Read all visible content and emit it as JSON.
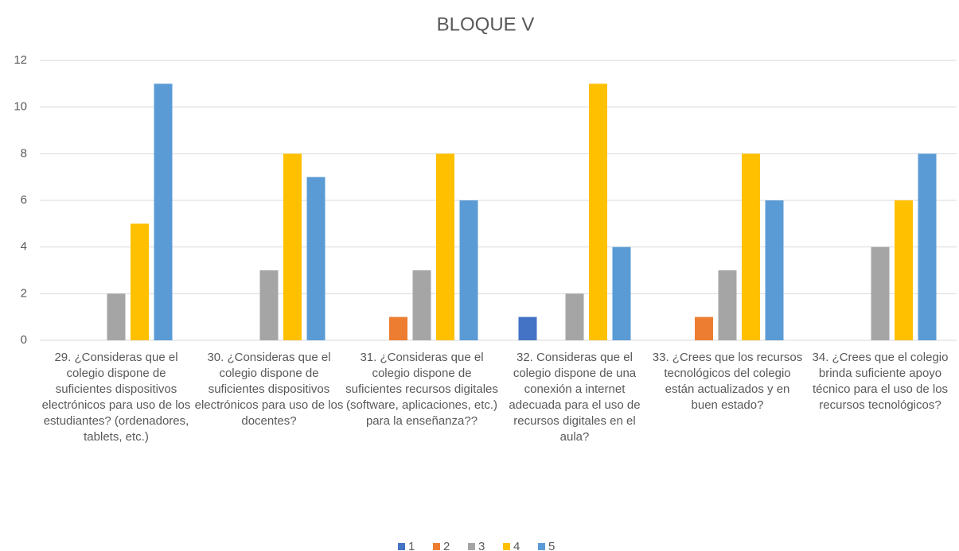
{
  "chart_data": {
    "type": "bar",
    "title": "BLOQUE V",
    "categories": [
      "29. ¿Consideras que el colegio dispone de suficientes dispositivos electrónicos para uso de los estudiantes? (ordenadores, tablets, etc.)",
      "30. ¿Consideras que el colegio dispone de suficientes dispositivos electrónicos para uso de los docentes?",
      "31. ¿Consideras que el colegio dispone de suficientes recursos digitales (software, aplicaciones, etc.) para la enseñanza??",
      "32. Consideras que el colegio dispone de una conexión a internet adecuada para el uso de recursos digitales en el aula?",
      "33. ¿Crees que los recursos tecnológicos del colegio están actualizados y en buen estado?",
      "34. ¿Crees que el colegio brinda suficiente apoyo técnico para el uso de los recursos tecnológicos?"
    ],
    "series": [
      {
        "name": "1",
        "color": "#4472c4",
        "values": [
          0,
          0,
          0,
          1,
          0,
          0
        ]
      },
      {
        "name": "2",
        "color": "#ed7d31",
        "values": [
          0,
          0,
          1,
          0,
          1,
          0
        ]
      },
      {
        "name": "3",
        "color": "#a5a5a5",
        "values": [
          2,
          3,
          3,
          2,
          3,
          4
        ]
      },
      {
        "name": "4",
        "color": "#ffc000",
        "values": [
          5,
          8,
          8,
          11,
          8,
          6
        ]
      },
      {
        "name": "5",
        "color": "#5b9bd5",
        "values": [
          11,
          7,
          6,
          4,
          6,
          8
        ]
      }
    ],
    "ylim": [
      0,
      12
    ],
    "yticks": [
      0,
      2,
      4,
      6,
      8,
      10,
      12
    ],
    "grid": true,
    "legend": "bottom"
  }
}
